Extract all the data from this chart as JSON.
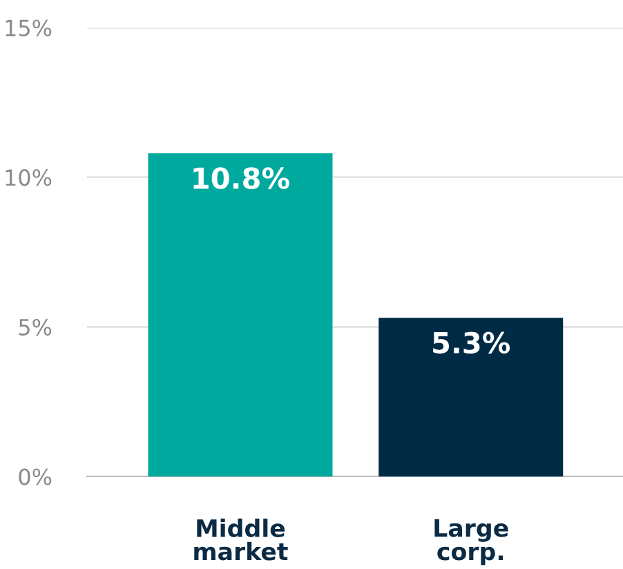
{
  "chart_data": {
    "type": "bar",
    "categories": [
      "Middle\nmarket",
      "Large\ncorp."
    ],
    "values": [
      10.8,
      5.3
    ],
    "colors": [
      "#00a99d",
      "#002b45"
    ],
    "value_labels": [
      "10.8%",
      "5.3%"
    ],
    "ylim": [
      0,
      15
    ],
    "yticks": [
      {
        "value": 0,
        "label": "0%"
      },
      {
        "value": 5,
        "label": "5%"
      },
      {
        "value": 10,
        "label": "10%"
      },
      {
        "value": 15,
        "label": "15%"
      }
    ],
    "grid": "y",
    "legend": false
  }
}
